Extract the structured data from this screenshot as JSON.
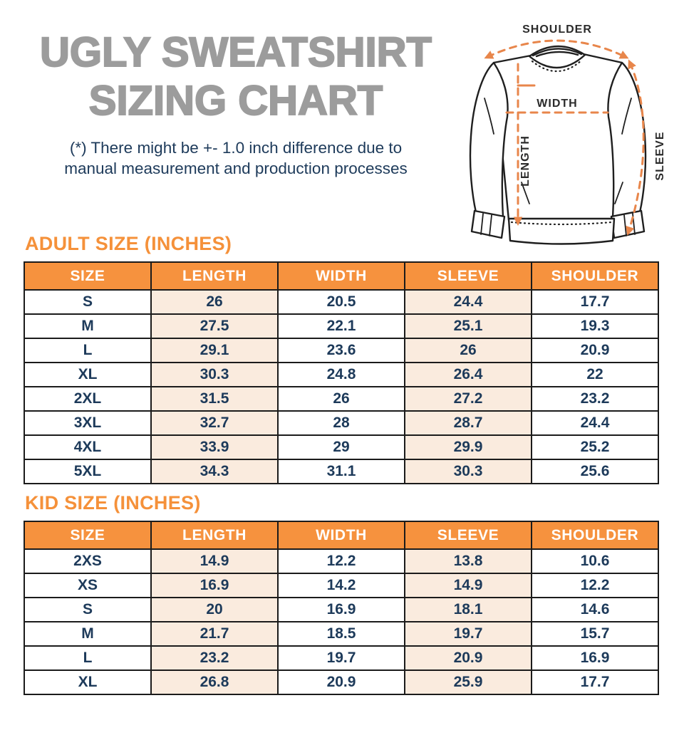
{
  "header": {
    "title_line1": "UGLY SWEATSHIRT",
    "title_line2": "SIZING CHART",
    "disclaimer_line1": "(*) There might be +- 1.0 inch difference due to",
    "disclaimer_line2": "manual measurement and production processes"
  },
  "diagram": {
    "shoulder_label": "SHOULDER",
    "width_label": "WIDTH",
    "length_label": "LENGTH",
    "sleeve_label": "SLEEVE",
    "arrow_color": "#E8864B",
    "outline_color": "#1F1F1F",
    "label_color": "#2B2B2B"
  },
  "colors": {
    "accent_orange": "#F5913A",
    "table_header_orange": "#F6923E",
    "peach_cell": "#FAEBDE",
    "navy_text": "#1D3A5A",
    "title_gray": "#9C9C9C",
    "border_black": "#1B1B1B"
  },
  "tables": [
    {
      "heading": "ADULT SIZE (INCHES)",
      "columns": [
        "SIZE",
        "LENGTH",
        "WIDTH",
        "SLEEVE",
        "SHOULDER"
      ],
      "rows": [
        [
          "S",
          "26",
          "20.5",
          "24.4",
          "17.7"
        ],
        [
          "M",
          "27.5",
          "22.1",
          "25.1",
          "19.3"
        ],
        [
          "L",
          "29.1",
          "23.6",
          "26",
          "20.9"
        ],
        [
          "XL",
          "30.3",
          "24.8",
          "26.4",
          "22"
        ],
        [
          "2XL",
          "31.5",
          "26",
          "27.2",
          "23.2"
        ],
        [
          "3XL",
          "32.7",
          "28",
          "28.7",
          "24.4"
        ],
        [
          "4XL",
          "33.9",
          "29",
          "29.9",
          "25.2"
        ],
        [
          "5XL",
          "34.3",
          "31.1",
          "30.3",
          "25.6"
        ]
      ]
    },
    {
      "heading": "KID SIZE (INCHES)",
      "columns": [
        "SIZE",
        "LENGTH",
        "WIDTH",
        "SLEEVE",
        "SHOULDER"
      ],
      "rows": [
        [
          "2XS",
          "14.9",
          "12.2",
          "13.8",
          "10.6"
        ],
        [
          "XS",
          "16.9",
          "14.2",
          "14.9",
          "12.2"
        ],
        [
          "S",
          "20",
          "16.9",
          "18.1",
          "14.6"
        ],
        [
          "M",
          "21.7",
          "18.5",
          "19.7",
          "15.7"
        ],
        [
          "L",
          "23.2",
          "19.7",
          "20.9",
          "16.9"
        ],
        [
          "XL",
          "26.8",
          "20.9",
          "25.9",
          "17.7"
        ]
      ]
    }
  ]
}
